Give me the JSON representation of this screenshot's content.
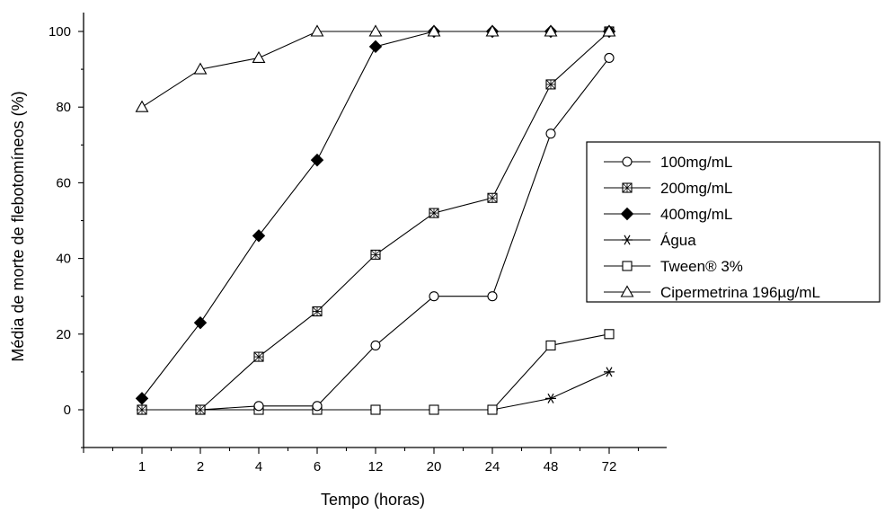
{
  "chart_data": {
    "type": "line",
    "categories": [
      "1",
      "2",
      "4",
      "6",
      "12",
      "20",
      "24",
      "48",
      "72"
    ],
    "xlabel": "Tempo (horas)",
    "ylabel": "Média de morte de flebotomíneos (%)",
    "ylim": [
      -10,
      105
    ],
    "yticks": [
      0,
      20,
      40,
      60,
      80,
      100
    ],
    "grid": false,
    "legend_position": "right",
    "series": [
      {
        "name": "100mg/mL",
        "marker": "circle-open",
        "values": [
          0,
          0,
          1,
          1,
          17,
          30,
          30,
          73,
          93
        ]
      },
      {
        "name": "200mg/mL",
        "marker": "square-crossed",
        "values": [
          0,
          0,
          14,
          26,
          41,
          52,
          56,
          86,
          100
        ]
      },
      {
        "name": "400mg/mL",
        "marker": "diamond-filled",
        "values": [
          3,
          23,
          46,
          66,
          96,
          100,
          100,
          100,
          100
        ]
      },
      {
        "name": "Água",
        "marker": "asterisk",
        "values": [
          0,
          0,
          0,
          0,
          0,
          0,
          0,
          3,
          10
        ]
      },
      {
        "name": "Tween® 3%",
        "marker": "square-open",
        "values": [
          0,
          0,
          0,
          0,
          0,
          0,
          0,
          17,
          20
        ]
      },
      {
        "name": "Cipermetrina 196µg/mL",
        "marker": "triangle-open",
        "values": [
          80,
          90,
          93,
          100,
          100,
          100,
          100,
          100,
          100
        ]
      }
    ]
  }
}
